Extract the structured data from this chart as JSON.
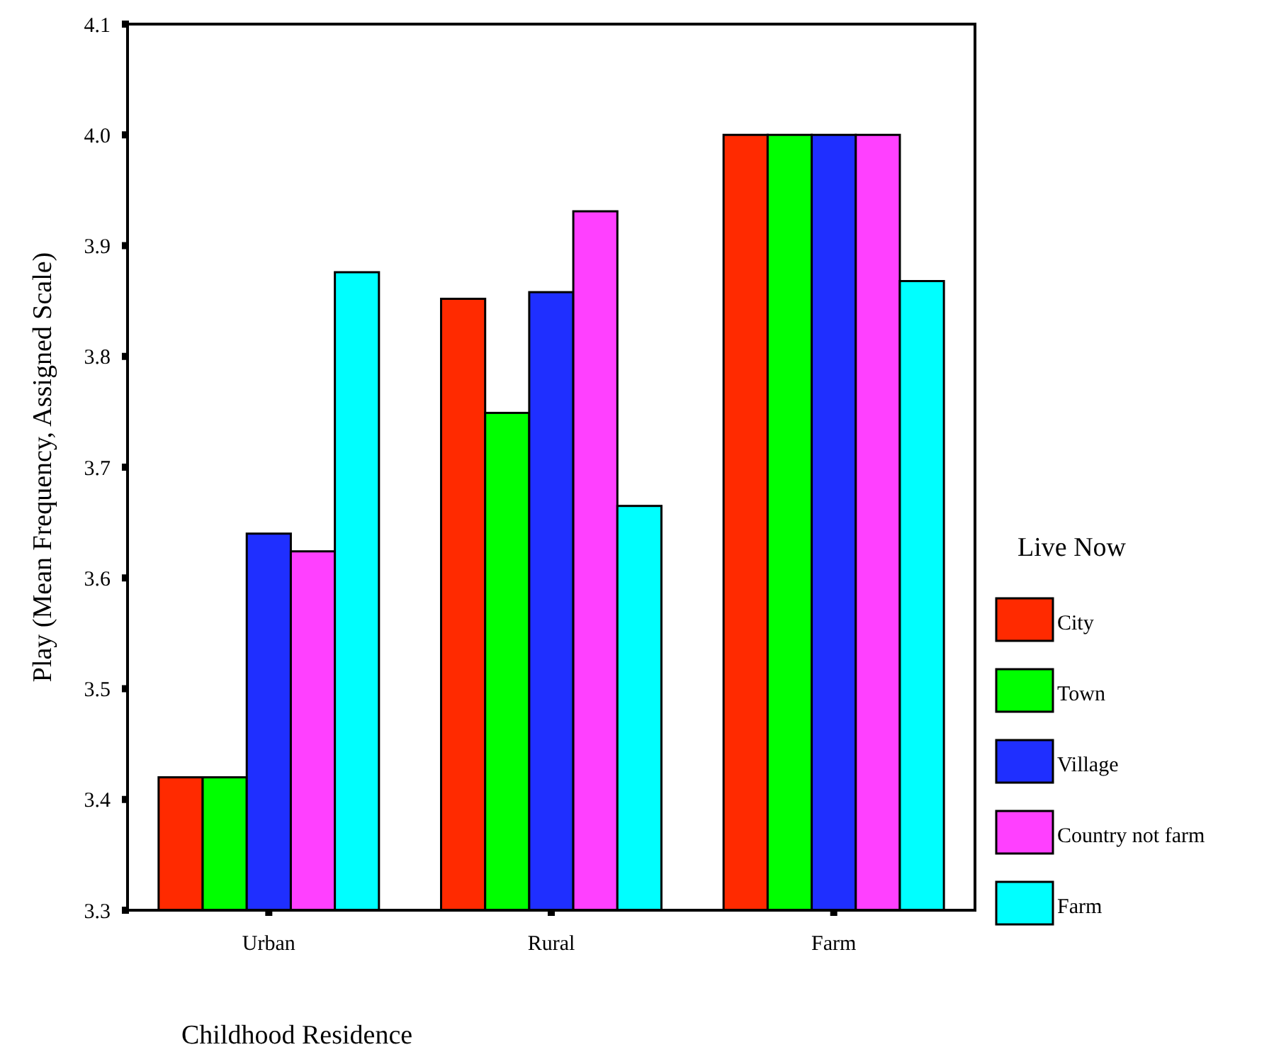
{
  "chart_data": {
    "type": "bar",
    "xlabel": "Childhood Residence",
    "ylabel": "Play (Mean Frequency, Assigned Scale)",
    "legend_title": "Live Now",
    "legend": "right",
    "categories": [
      "Urban",
      "Rural",
      "Farm"
    ],
    "series": [
      {
        "name": "City",
        "color": "#ff2a00",
        "values": [
          3.42,
          3.852,
          4.0
        ]
      },
      {
        "name": "Town",
        "color": "#00ff00",
        "values": [
          3.42,
          3.749,
          4.0
        ]
      },
      {
        "name": "Village",
        "color": "#1f2fff",
        "values": [
          3.64,
          3.858,
          4.0
        ]
      },
      {
        "name": "Country not farm",
        "color": "#ff40ff",
        "values": [
          3.624,
          3.931,
          4.0
        ]
      },
      {
        "name": "Farm",
        "color": "#00ffff",
        "values": [
          3.876,
          3.665,
          3.868
        ]
      }
    ],
    "ylim": [
      3.3,
      4.1
    ],
    "yticks": [
      {
        "value": 3.3,
        "label": "3.3"
      },
      {
        "value": 3.4,
        "label": "3.4"
      },
      {
        "value": 3.5,
        "label": "3.5"
      },
      {
        "value": 3.6,
        "label": "3.6"
      },
      {
        "value": 3.7,
        "label": "3.7"
      },
      {
        "value": 3.8,
        "label": "3.8"
      },
      {
        "value": 3.9,
        "label": "3.9"
      },
      {
        "value": 4.0,
        "label": "4.0"
      },
      {
        "value": 4.1,
        "label": "4.1"
      }
    ]
  }
}
